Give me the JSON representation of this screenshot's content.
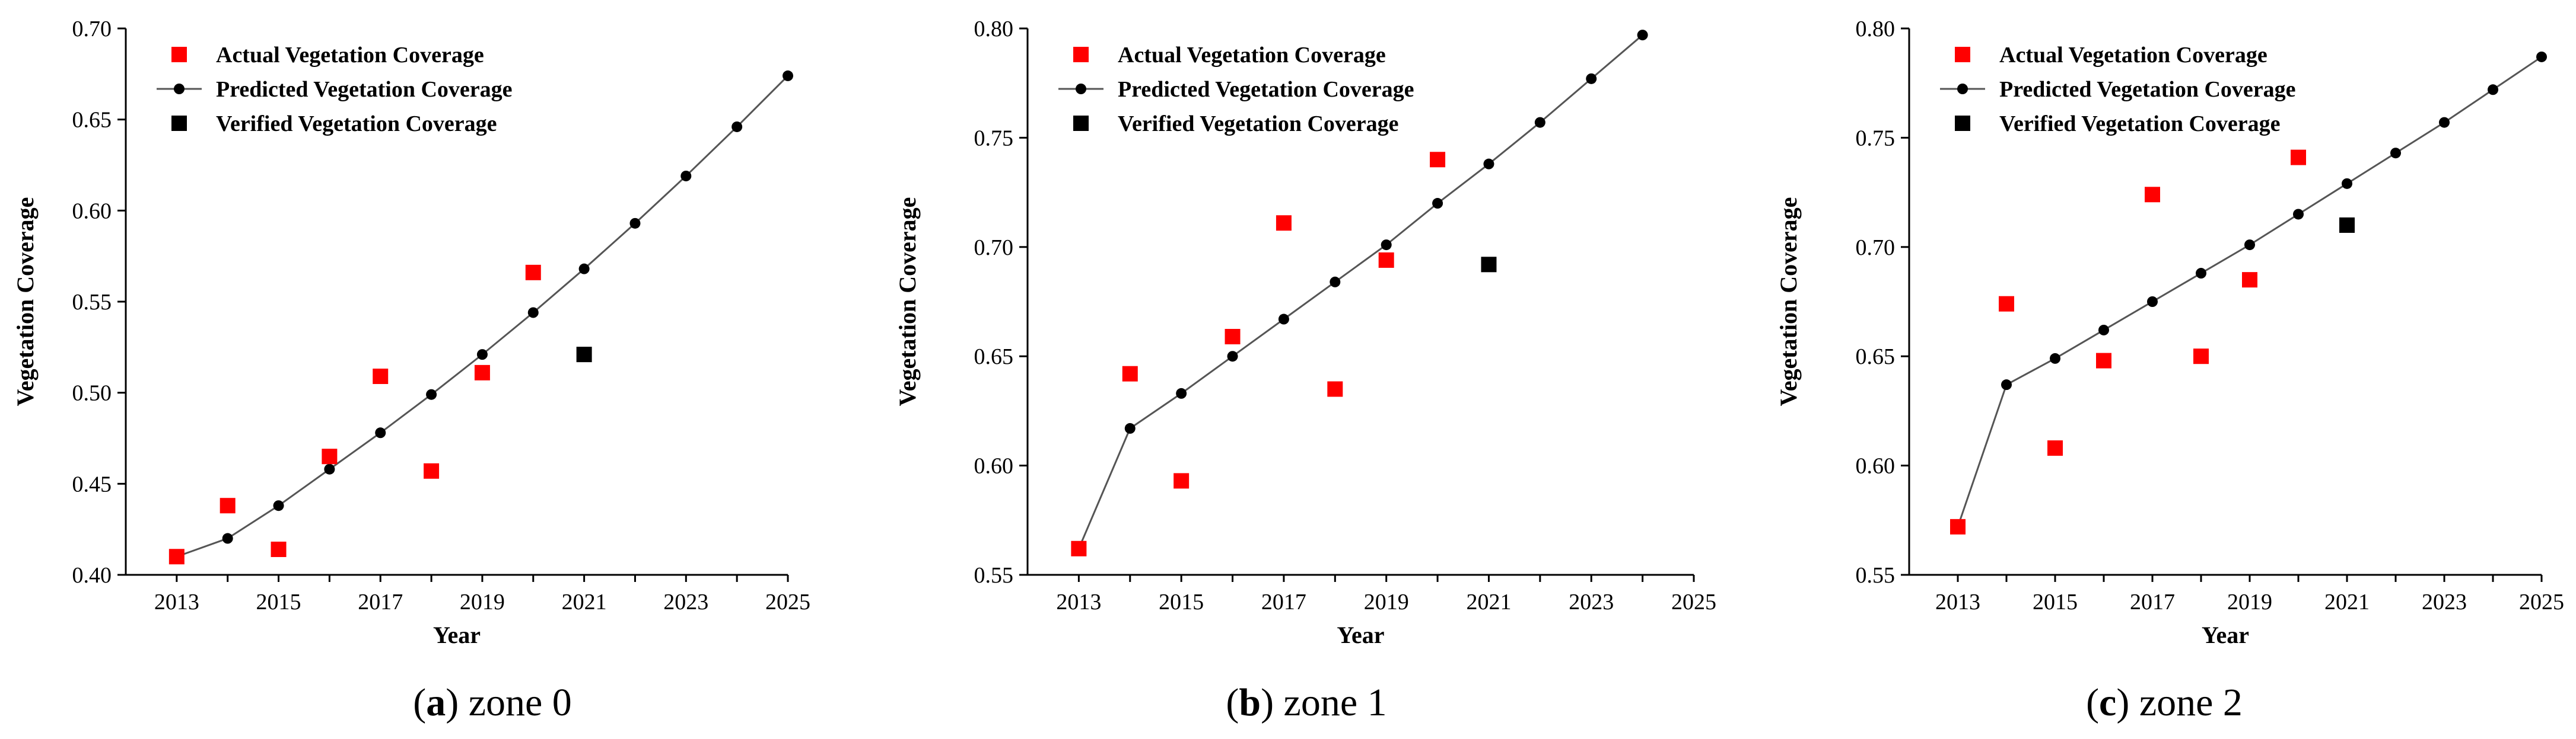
{
  "chart_data": [
    {
      "type": "scatter",
      "caption_letter": "a",
      "caption_text": "zone 0",
      "xlabel": "Year",
      "ylabel": "Vegetation Coverage",
      "xlim": [
        2012,
        2025
      ],
      "ylim": [
        0.4,
        0.7
      ],
      "x_ticks": [
        2013,
        2015,
        2017,
        2019,
        2021,
        2023,
        2025
      ],
      "y_ticks": [
        0.4,
        0.45,
        0.5,
        0.55,
        0.6,
        0.65,
        0.7
      ],
      "y_tick_labels": [
        "0.40",
        "0.45",
        "0.50",
        "0.55",
        "0.60",
        "0.65",
        "0.70"
      ],
      "legend": [
        "Actual Vegetation Coverage",
        "Predicted Vegetation Coverage",
        "Verified Vegetation Coverage"
      ],
      "series": [
        {
          "name": "Actual Vegetation Coverage",
          "color": "#ff0000",
          "x": [
            2013,
            2014,
            2015,
            2016,
            2017,
            2018,
            2019,
            2020
          ],
          "y": [
            0.41,
            0.438,
            0.414,
            0.465,
            0.509,
            0.457,
            0.511,
            0.566
          ]
        },
        {
          "name": "Predicted Vegetation Coverage",
          "color": "#000000",
          "x": [
            2013,
            2014,
            2015,
            2016,
            2017,
            2018,
            2019,
            2020,
            2021,
            2022,
            2023,
            2024,
            2025
          ],
          "y": [
            0.41,
            0.42,
            0.438,
            0.458,
            0.478,
            0.499,
            0.521,
            0.544,
            0.568,
            0.593,
            0.619,
            0.646,
            0.674
          ]
        },
        {
          "name": "Verified Vegetation Coverage",
          "color": "#000000",
          "x": [
            2021
          ],
          "y": [
            0.521
          ]
        }
      ]
    },
    {
      "type": "scatter",
      "caption_letter": "b",
      "caption_text": "zone 1",
      "xlabel": "Year",
      "ylabel": "Vegetation Coverage",
      "xlim": [
        2012,
        2025
      ],
      "ylim": [
        0.55,
        0.8
      ],
      "x_ticks": [
        2013,
        2015,
        2017,
        2019,
        2021,
        2023,
        2025
      ],
      "y_ticks": [
        0.55,
        0.6,
        0.65,
        0.7,
        0.75,
        0.8
      ],
      "y_tick_labels": [
        "0.55",
        "0.60",
        "0.65",
        "0.70",
        "0.75",
        "0.80"
      ],
      "legend": [
        "Actual Vegetation Coverage",
        "Predicted Vegetation Coverage",
        "Verified Vegetation Coverage"
      ],
      "series": [
        {
          "name": "Actual Vegetation Coverage",
          "color": "#ff0000",
          "x": [
            2013,
            2014,
            2015,
            2016,
            2017,
            2018,
            2019,
            2020
          ],
          "y": [
            0.562,
            0.642,
            0.593,
            0.659,
            0.711,
            0.635,
            0.694,
            0.74
          ]
        },
        {
          "name": "Predicted Vegetation Coverage",
          "color": "#000000",
          "x": [
            2013,
            2014,
            2015,
            2016,
            2017,
            2018,
            2019,
            2020,
            2021,
            2022,
            2023,
            2024
          ],
          "y": [
            0.562,
            0.617,
            0.633,
            0.65,
            0.667,
            0.684,
            0.701,
            0.72,
            0.738,
            0.757,
            0.777,
            0.797
          ]
        },
        {
          "name": "Verified Vegetation Coverage",
          "color": "#000000",
          "x": [
            2021
          ],
          "y": [
            0.692
          ]
        }
      ]
    },
    {
      "type": "scatter",
      "caption_letter": "c",
      "caption_text": "zone 2",
      "xlabel": "Year",
      "ylabel": "Vegetation Coverage",
      "xlim": [
        2012,
        2025
      ],
      "ylim": [
        0.55,
        0.8
      ],
      "x_ticks": [
        2013,
        2015,
        2017,
        2019,
        2021,
        2023,
        2025
      ],
      "y_ticks": [
        0.55,
        0.6,
        0.65,
        0.7,
        0.75,
        0.8
      ],
      "y_tick_labels": [
        "0.55",
        "0.60",
        "0.65",
        "0.70",
        "0.75",
        "0.80"
      ],
      "legend": [
        "Actual Vegetation Coverage",
        "Predicted Vegetation Coverage",
        "Verified Vegetation Coverage"
      ],
      "series": [
        {
          "name": "Actual Vegetation Coverage",
          "color": "#ff0000",
          "x": [
            2013,
            2014,
            2015,
            2016,
            2017,
            2018,
            2019,
            2020
          ],
          "y": [
            0.572,
            0.674,
            0.608,
            0.648,
            0.724,
            0.65,
            0.685,
            0.741
          ]
        },
        {
          "name": "Predicted Vegetation Coverage",
          "color": "#000000",
          "x": [
            2013,
            2014,
            2015,
            2016,
            2017,
            2018,
            2019,
            2020,
            2021,
            2022,
            2023,
            2024,
            2025
          ],
          "y": [
            0.572,
            0.637,
            0.649,
            0.662,
            0.675,
            0.688,
            0.701,
            0.715,
            0.729,
            0.743,
            0.757,
            0.772,
            0.787
          ]
        },
        {
          "name": "Verified Vegetation Coverage",
          "color": "#000000",
          "x": [
            2021
          ],
          "y": [
            0.71
          ]
        }
      ]
    }
  ]
}
